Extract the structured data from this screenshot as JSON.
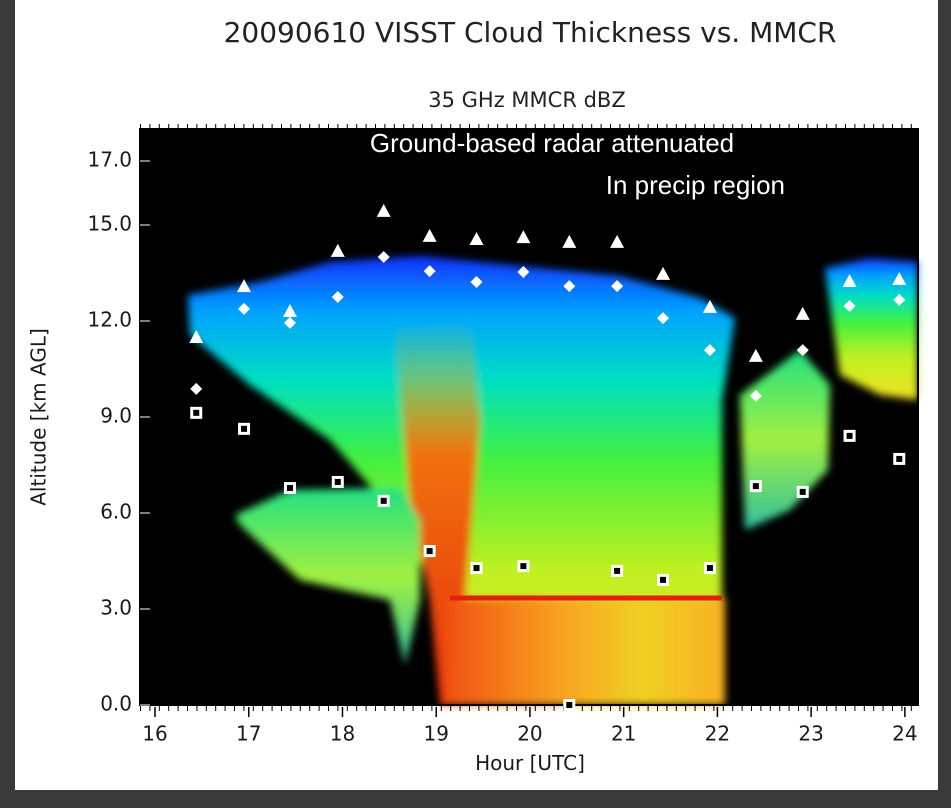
{
  "chart_data": {
    "type": "scatter",
    "title": "20090610 VISST Cloud Thickness vs. MMCR",
    "subtitle": "35 GHz MMCR dBZ",
    "annotations": [
      "Ground-based radar attenuated",
      "In precip region"
    ],
    "x_label": "Hour [UTC]",
    "y_label": "Altitude [km AGL]",
    "xlim": [
      15.84,
      24.14
    ],
    "xticks": [
      16,
      17,
      18,
      19,
      20,
      21,
      22,
      23,
      24
    ],
    "ylim": [
      0,
      18
    ],
    "yticks": [
      {
        "value": 0,
        "label": "0.0"
      },
      {
        "value": 3,
        "label": "3.0"
      },
      {
        "value": 6,
        "label": "6.0"
      },
      {
        "value": 9,
        "label": "9.0"
      },
      {
        "value": 12,
        "label": "12.0"
      },
      {
        "value": 15,
        "label": "15.0"
      },
      {
        "value": 17,
        "label": "17.0"
      }
    ],
    "series": [
      {
        "marker": "triangle",
        "color": "#ffffff",
        "x": [
          16.44,
          16.95,
          17.44,
          17.95,
          18.44,
          18.93,
          19.43,
          19.93,
          20.42,
          20.93,
          21.42,
          21.92,
          22.41,
          22.91,
          23.41,
          23.94
        ],
        "values": [
          11.47,
          13.06,
          12.28,
          14.16,
          15.41,
          14.63,
          14.53,
          14.59,
          14.44,
          14.44,
          13.44,
          12.41,
          10.88,
          12.19,
          13.22,
          13.28
        ]
      },
      {
        "marker": "diamond",
        "color": "#ffffff",
        "x": [
          16.44,
          16.95,
          17.44,
          17.95,
          18.44,
          18.93,
          19.43,
          19.93,
          20.42,
          20.93,
          21.42,
          21.92,
          22.41,
          22.91,
          23.41,
          23.94
        ],
        "values": [
          9.88,
          12.38,
          11.94,
          12.75,
          14.0,
          13.56,
          13.22,
          13.53,
          13.09,
          13.09,
          12.09,
          11.09,
          9.66,
          11.09,
          12.47,
          12.66
        ]
      },
      {
        "marker": "square",
        "color": "#ffffff",
        "x": [
          16.44,
          16.95,
          17.44,
          17.95,
          18.44,
          18.93,
          19.43,
          19.93,
          20.42,
          20.93,
          21.42,
          21.92,
          22.41,
          22.91,
          23.41,
          23.94
        ],
        "values": [
          9.13,
          8.63,
          6.78,
          6.97,
          6.38,
          4.81,
          4.28,
          4.34,
          0.0,
          4.19,
          3.91,
          4.28,
          6.84,
          6.66,
          8.41,
          7.69
        ]
      }
    ]
  }
}
